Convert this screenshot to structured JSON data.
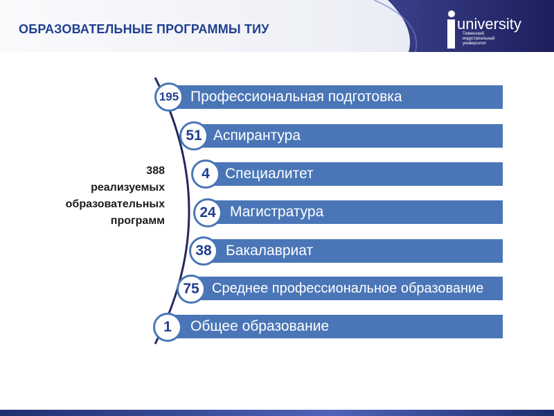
{
  "title": "ОБРАЗОВАТЕЛЬНЫЕ ПРОГРАММЫ ТИУ",
  "logo": {
    "name": "university",
    "subtitle": "Тюменский индустриальный университет"
  },
  "summary": {
    "line1": "388",
    "line2": "реализуемых",
    "line3": "образовательных",
    "line4": "программ"
  },
  "items": [
    {
      "count": "195",
      "label": "Профессиональная подготовка"
    },
    {
      "count": "51",
      "label": "Аспирантура"
    },
    {
      "count": "4",
      "label": "Специалитет"
    },
    {
      "count": "24",
      "label": "Магистратура"
    },
    {
      "count": "38",
      "label": "Бакалавриат"
    },
    {
      "count": "75",
      "label": "Среднее профессиональное образование"
    },
    {
      "count": "1",
      "label": "Общее образование"
    }
  ],
  "colors": {
    "accent": "#4a76b7",
    "title": "#1f3f8f",
    "header_band": "#2a2f78"
  }
}
